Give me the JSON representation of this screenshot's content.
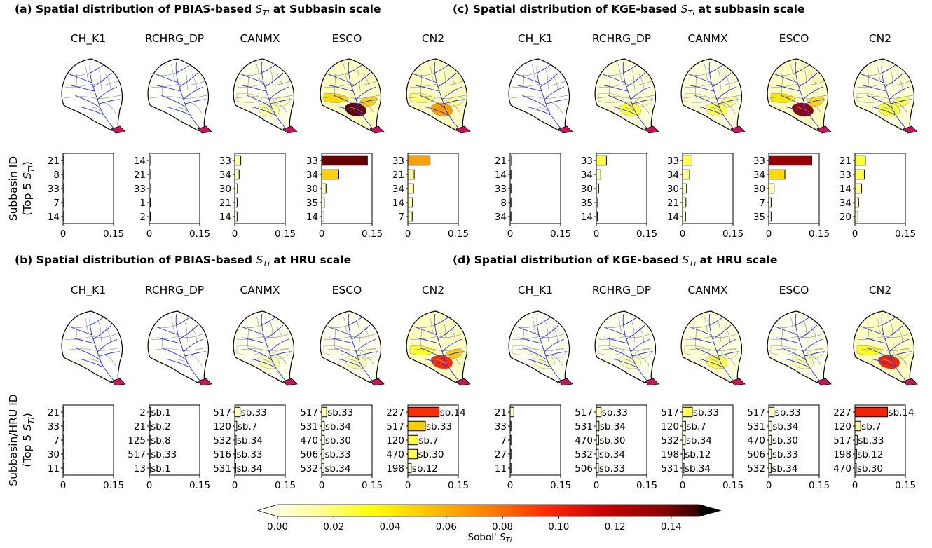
{
  "chart_data": {
    "type": "bar",
    "orientation": "horizontal",
    "xlim": [
      0,
      0.15
    ],
    "xticks": [
      "0",
      "0.15"
    ],
    "parameters": [
      "CH_K1",
      "RCHRG_DP",
      "CANMX",
      "ESCO",
      "CN2"
    ],
    "colorbar": {
      "label": "Sobol' S_Ti",
      "label_prefix": "Sobol'",
      "symbol": "S",
      "subscript": "Ti",
      "range": [
        0,
        0.15
      ],
      "ticks": [
        "0.00",
        "0.02",
        "0.04",
        "0.06",
        "0.08",
        "0.10",
        "0.12",
        "0.14"
      ],
      "colors": [
        "#ffffff",
        "#ffff9e",
        "#ffff00",
        "#ffc000",
        "#ff7f00",
        "#ff2a00",
        "#c80000",
        "#8c0000",
        "#000000"
      ]
    },
    "row_labels": [
      {
        "line1": "Subbasin ID",
        "line2": "(Top 5 ",
        "symbol": "S",
        "subscript": "Ti",
        "close": ")"
      },
      {
        "line1": "Subbasin/HRU ID",
        "line2": "(Top 5 ",
        "symbol": "S",
        "subscript": "Ti",
        "close": ")"
      }
    ],
    "panels": [
      {
        "title_pre": "(a) Spatial distribution of PBIAS-based ",
        "title_sym": "S",
        "title_sub": "Ti",
        "title_post": " at Subbasin scale",
        "scale": "subbasin",
        "metric": "PBIAS",
        "charts": [
          {
            "param": "CH_K1",
            "ids": [
              "21",
              "8",
              "33",
              "7",
              "14"
            ],
            "values": [
              0.001,
              0.001,
              0.0008,
              0.0006,
              0.0005
            ],
            "labels": []
          },
          {
            "param": "RCHRG_DP",
            "ids": [
              "14",
              "21",
              "33",
              "1",
              "2"
            ],
            "values": [
              0.004,
              0.004,
              0.004,
              0.003,
              0.003
            ],
            "labels": []
          },
          {
            "param": "CANMX",
            "ids": [
              "33",
              "34",
              "30",
              "21",
              "14"
            ],
            "values": [
              0.018,
              0.013,
              0.008,
              0.007,
              0.007
            ],
            "labels": []
          },
          {
            "param": "ESCO",
            "ids": [
              "33",
              "34",
              "30",
              "35",
              "14"
            ],
            "values": [
              0.136,
              0.051,
              0.013,
              0.008,
              0.007
            ],
            "labels": []
          },
          {
            "param": "CN2",
            "ids": [
              "33",
              "21",
              "34",
              "14",
              "7"
            ],
            "values": [
              0.066,
              0.019,
              0.017,
              0.014,
              0.013
            ],
            "labels": []
          }
        ]
      },
      {
        "title_pre": "(c) Spatial distribution of KGE-based ",
        "title_sym": "S",
        "title_sub": "Ti",
        "title_post": " at subbasin scale",
        "scale": "subbasin",
        "metric": "KGE",
        "charts": [
          {
            "param": "CH_K1",
            "ids": [
              "21",
              "14",
              "33",
              "8",
              "34"
            ],
            "values": [
              0.004,
              0.002,
              0.0015,
              0.0012,
              0.0009
            ],
            "labels": []
          },
          {
            "param": "RCHRG_DP",
            "ids": [
              "33",
              "34",
              "30",
              "35",
              "14"
            ],
            "values": [
              0.03,
              0.013,
              0.007,
              0.004,
              0.003
            ],
            "labels": []
          },
          {
            "param": "CANMX",
            "ids": [
              "33",
              "34",
              "30",
              "21",
              "14"
            ],
            "values": [
              0.028,
              0.021,
              0.012,
              0.01,
              0.009
            ],
            "labels": []
          },
          {
            "param": "ESCO",
            "ids": [
              "33",
              "34",
              "30",
              "7",
              "35"
            ],
            "values": [
              0.128,
              0.048,
              0.016,
              0.007,
              0.007
            ],
            "labels": []
          },
          {
            "param": "CN2",
            "ids": [
              "21",
              "33",
              "14",
              "34",
              "20"
            ],
            "values": [
              0.031,
              0.028,
              0.02,
              0.011,
              0.009
            ],
            "labels": []
          }
        ]
      },
      {
        "title_pre": "(b) Spatial distribution of PBIAS-based ",
        "title_sym": "S",
        "title_sub": "Ti",
        "title_post": " at HRU scale",
        "scale": "hru",
        "metric": "PBIAS",
        "charts": [
          {
            "param": "CH_K1",
            "ids": [
              "21",
              "33",
              "7",
              "30",
              "11"
            ],
            "values": [
              0.002,
              0.0005,
              0.0004,
              0.0004,
              0.0003
            ],
            "labels": []
          },
          {
            "param": "RCHRG_DP",
            "ids": [
              "2",
              "21",
              "125",
              "517",
              "13"
            ],
            "values": [
              0.003,
              0.002,
              0.002,
              0.002,
              0.002
            ],
            "labels": [
              "sb.1",
              "sb.2",
              "sb.8",
              "sb.33",
              "sb.1"
            ]
          },
          {
            "param": "CANMX",
            "ids": [
              "517",
              "120",
              "532",
              "516",
              "531"
            ],
            "values": [
              0.016,
              0.006,
              0.004,
              0.003,
              0.003
            ],
            "labels": [
              "sb.33",
              "sb.7",
              "sb.34",
              "sb.33",
              "sb.34"
            ]
          },
          {
            "param": "ESCO",
            "ids": [
              "517",
              "531",
              "470",
              "506",
              "532"
            ],
            "values": [
              0.015,
              0.008,
              0.008,
              0.007,
              0.007
            ],
            "labels": [
              "sb.33",
              "sb.34",
              "sb.30",
              "sb.33",
              "sb.34"
            ]
          },
          {
            "param": "CN2",
            "ids": [
              "227",
              "517",
              "120",
              "470",
              "198"
            ],
            "values": [
              0.093,
              0.052,
              0.03,
              0.028,
              0.01
            ],
            "labels": [
              "sb.14",
              "sb.33",
              "sb.7",
              "sb.30",
              "sb.12"
            ]
          }
        ]
      },
      {
        "title_pre": "(d) Spatial distribution of KGE-based ",
        "title_sym": "S",
        "title_sub": "Ti",
        "title_post": " at HRU scale",
        "scale": "hru",
        "metric": "KGE",
        "charts": [
          {
            "param": "CH_K1",
            "ids": [
              "21",
              "33",
              "7",
              "27",
              "11"
            ],
            "values": [
              0.011,
              0.002,
              0.0015,
              0.0015,
              0.001
            ],
            "labels": []
          },
          {
            "param": "RCHRG_DP",
            "ids": [
              "517",
              "531",
              "470",
              "532",
              "506"
            ],
            "values": [
              0.014,
              0.008,
              0.007,
              0.006,
              0.006
            ],
            "labels": [
              "sb.33",
              "sb.34",
              "sb.30",
              "sb.34",
              "sb.33"
            ]
          },
          {
            "param": "CANMX",
            "ids": [
              "517",
              "120",
              "532",
              "198",
              "531"
            ],
            "values": [
              0.029,
              0.009,
              0.008,
              0.005,
              0.004
            ],
            "labels": [
              "sb.33",
              "sb.7",
              "sb.34",
              "sb.12",
              "sb.34"
            ]
          },
          {
            "param": "ESCO",
            "ids": [
              "517",
              "531",
              "470",
              "506",
              "532"
            ],
            "values": [
              0.016,
              0.009,
              0.008,
              0.008,
              0.007
            ],
            "labels": [
              "sb.33",
              "sb.34",
              "sb.30",
              "sb.33",
              "sb.34"
            ]
          },
          {
            "param": "CN2",
            "ids": [
              "227",
              "120",
              "517",
              "198",
              "470"
            ],
            "values": [
              0.097,
              0.017,
              0.007,
              0.005,
              0.004
            ],
            "labels": [
              "sb.14",
              "sb.7",
              "sb.33",
              "sb.12",
              "sb.30"
            ]
          }
        ]
      }
    ]
  }
}
